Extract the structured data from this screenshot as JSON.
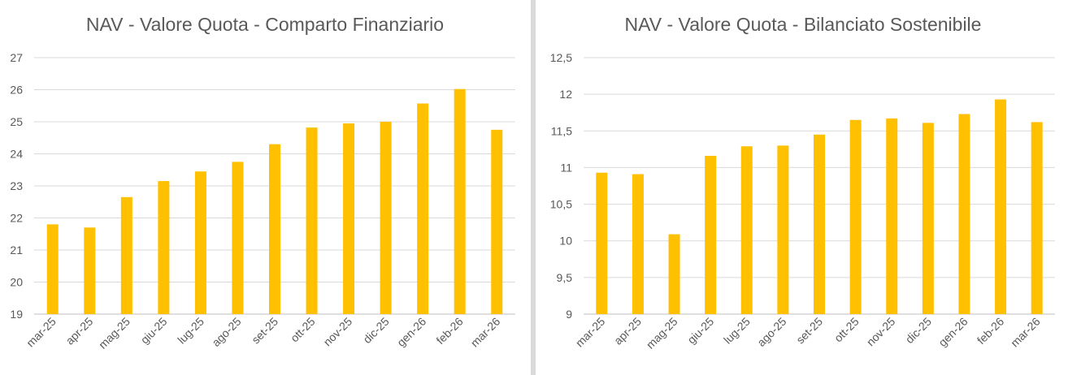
{
  "chart_data": [
    {
      "type": "bar",
      "title": "NAV - Valore Quota - Comparto Finanziario",
      "xlabel": "",
      "ylabel": "",
      "categories": [
        "mar-25",
        "apr-25",
        "mag-25",
        "giu-25",
        "lug-25",
        "ago-25",
        "set-25",
        "ott-25",
        "nov-25",
        "dic-25",
        "gen-26",
        "feb-26",
        "mar-26"
      ],
      "values": [
        21.8,
        21.7,
        22.65,
        23.15,
        23.45,
        23.75,
        24.3,
        24.82,
        24.95,
        25.0,
        25.57,
        26.02,
        24.75
      ],
      "ylim": [
        19,
        27
      ],
      "yticks": [
        19,
        20,
        21,
        22,
        23,
        24,
        25,
        26,
        27
      ],
      "ytick_labels": [
        "19",
        "20",
        "21",
        "22",
        "23",
        "24",
        "25",
        "26",
        "27"
      ],
      "grid": true,
      "legend": "none",
      "color": "#FFC000"
    },
    {
      "type": "bar",
      "title": "NAV - Valore Quota - Bilanciato Sostenibile",
      "xlabel": "",
      "ylabel": "",
      "categories": [
        "mar-25",
        "apr-25",
        "mag-25",
        "giu-25",
        "lug-25",
        "ago-25",
        "set-25",
        "ott-25",
        "nov-25",
        "dic-25",
        "gen-26",
        "feb-26",
        "mar-26"
      ],
      "values": [
        10.93,
        10.91,
        10.09,
        11.16,
        11.29,
        11.3,
        11.45,
        11.65,
        11.67,
        11.61,
        11.73,
        11.93,
        11.62
      ],
      "ylim": [
        9,
        12.5
      ],
      "yticks": [
        9,
        9.5,
        10,
        10.5,
        11,
        11.5,
        12,
        12.5
      ],
      "ytick_labels": [
        "9",
        "9,5",
        "10",
        "10,5",
        "11",
        "11,5",
        "12",
        "12,5"
      ],
      "grid": true,
      "legend": "none",
      "color": "#FFC000"
    }
  ]
}
